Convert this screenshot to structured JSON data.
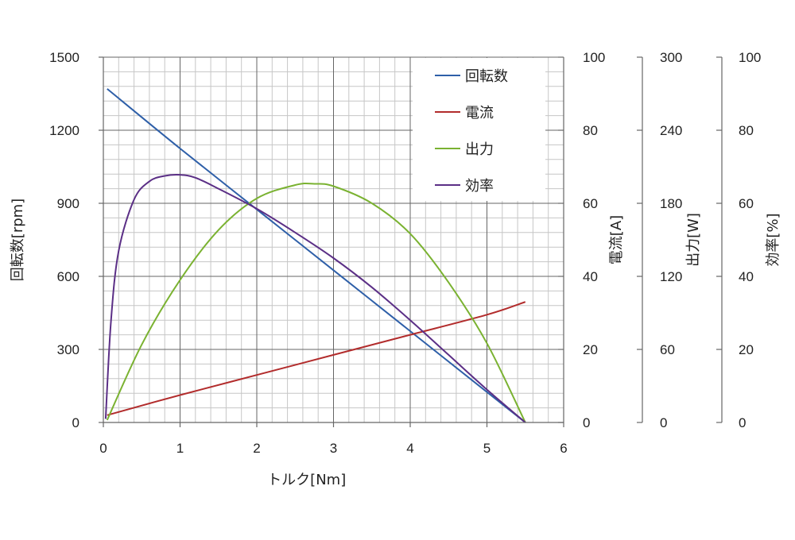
{
  "chart_data": {
    "type": "line",
    "xlabel": "トルク[Nm]",
    "xlim": [
      0,
      6
    ],
    "x_ticks": [
      "0",
      "1",
      "2",
      "3",
      "4",
      "5",
      "6"
    ],
    "axes": [
      {
        "id": "rpm",
        "label": "回転数[rpm]",
        "ylim": [
          0,
          1500
        ],
        "ticks": [
          "0",
          "300",
          "600",
          "900",
          "1200",
          "1500"
        ],
        "side": "left"
      },
      {
        "id": "current",
        "label": "電流[A]",
        "ylim": [
          0,
          100
        ],
        "ticks": [
          "0",
          "20",
          "40",
          "60",
          "80",
          "100"
        ],
        "side": "right"
      },
      {
        "id": "power",
        "label": "出力[W]",
        "ylim": [
          0,
          300
        ],
        "ticks": [
          "0",
          "60",
          "120",
          "180",
          "240",
          "300"
        ],
        "side": "right"
      },
      {
        "id": "efficiency",
        "label": "効率[%]",
        "ylim": [
          0,
          100
        ],
        "ticks": [
          "0",
          "20",
          "40",
          "60",
          "80",
          "100"
        ],
        "side": "right"
      }
    ],
    "series": [
      {
        "name": "回転数",
        "axis": "rpm",
        "color": "#2e5fa8",
        "x": [
          0.05,
          1.0,
          2.0,
          3.0,
          4.0,
          5.0,
          5.5
        ],
        "y": [
          1370,
          1125,
          875,
          625,
          375,
          125,
          0
        ]
      },
      {
        "name": "電流",
        "axis": "current",
        "color": "#b22c2c",
        "x": [
          0.05,
          1.0,
          2.0,
          3.0,
          4.0,
          5.0,
          5.5
        ],
        "y": [
          2,
          7.5,
          13,
          18.5,
          24,
          29.5,
          33
        ]
      },
      {
        "name": "出力",
        "axis": "power",
        "color": "#7ab231",
        "x": [
          0.05,
          0.5,
          1.0,
          1.5,
          2.0,
          2.5,
          2.75,
          3.0,
          3.5,
          4.0,
          4.5,
          5.0,
          5.5
        ],
        "y": [
          2,
          64,
          117,
          158,
          184,
          195,
          196,
          194,
          180,
          155,
          115,
          65,
          0
        ]
      },
      {
        "name": "効率",
        "axis": "efficiency",
        "color": "#5b2f86",
        "x": [
          0.03,
          0.1,
          0.2,
          0.4,
          0.6,
          0.8,
          1.0,
          1.2,
          1.5,
          2.0,
          2.5,
          3.0,
          3.5,
          4.0,
          4.5,
          5.0,
          5.5
        ],
        "y": [
          1,
          28,
          47,
          61,
          66,
          67.5,
          67.8,
          67,
          64,
          58.5,
          52,
          45,
          37,
          28,
          18.5,
          9,
          0
        ]
      }
    ],
    "legend": {
      "position": "top-right",
      "entries": [
        "回転数",
        "電流",
        "出力",
        "効率"
      ]
    },
    "grid": true
  }
}
